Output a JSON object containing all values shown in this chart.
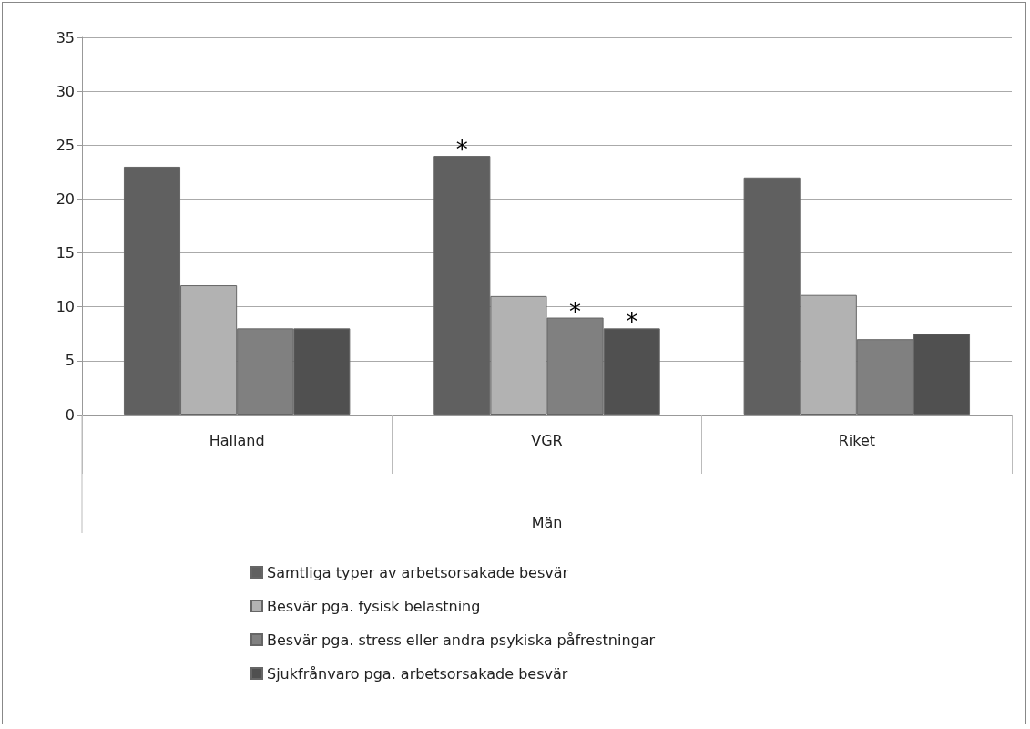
{
  "chart_data": {
    "type": "bar",
    "categories": [
      "Halland",
      "VGR",
      "Riket"
    ],
    "xlabel": "Män",
    "series": [
      {
        "name": "Samtliga typer av arbetsorsakade besvär",
        "color": "#606060",
        "values": [
          23,
          24,
          22
        ],
        "value_labels": [
          null,
          "*",
          null
        ]
      },
      {
        "name": "Besvär pga. fysisk belastning",
        "color": "#b2b2b2",
        "values": [
          12,
          11,
          11.1
        ]
      },
      {
        "name": "Besvär pga. stress eller andra psykiska påfrestningar",
        "color": "#808080",
        "values": [
          8,
          9,
          7
        ],
        "value_labels": [
          null,
          "*",
          null
        ]
      },
      {
        "name": "Sjukfrånvaro pga. arbetsorsakade besvär",
        "color": "#505050",
        "values": [
          8,
          8,
          7.5
        ],
        "value_labels": [
          null,
          "*",
          null
        ]
      }
    ],
    "ylim": [
      0,
      35
    ],
    "yticks": [
      0,
      5,
      10,
      15,
      20,
      25,
      30,
      35
    ],
    "grid": "y",
    "legend": "bottom"
  }
}
